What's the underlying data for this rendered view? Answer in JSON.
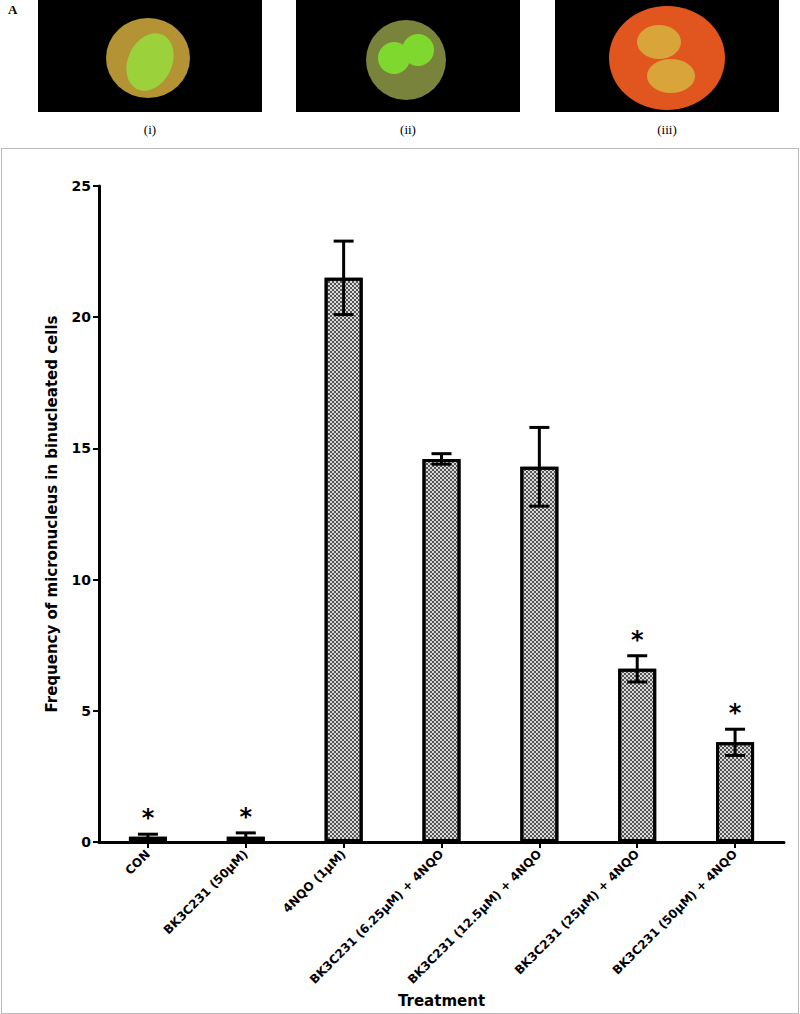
{
  "figure": {
    "panel_label": "A",
    "image_captions": [
      "(i)",
      "(ii)",
      "(iii)"
    ]
  },
  "chart_data": {
    "type": "bar",
    "categories": [
      "CON",
      "BK3C231 (50μM)",
      "4NQO (1μM)",
      "BK3C231 (6.25μM) + 4NQO",
      "BK3C231 (12.5μM) + 4NQO",
      "BK3C231 (25μM) + 4NQO",
      "BK3C231 (50μM) + 4NQO"
    ],
    "values": [
      0.2,
      0.2,
      21.5,
      14.6,
      14.3,
      6.6,
      3.8
    ],
    "errors": [
      0.1,
      0.15,
      1.4,
      0.2,
      1.5,
      0.5,
      0.5
    ],
    "color": "#d9d9d9",
    "xlabel": "Treatment",
    "ylabel": "Frequency of micronucleus in binucleated cells",
    "ylim": [
      0,
      25
    ],
    "yticks": [
      0,
      5,
      10,
      15,
      20,
      25
    ],
    "grid": false,
    "annotations": [
      {
        "category": "CON",
        "text": "*"
      },
      {
        "category": "BK3C231 (50μM)",
        "text": "*"
      },
      {
        "category": "BK3C231 (25μM) + 4NQO",
        "text": "*"
      },
      {
        "category": "BK3C231 (50μM) + 4NQO",
        "text": "*"
      }
    ]
  }
}
